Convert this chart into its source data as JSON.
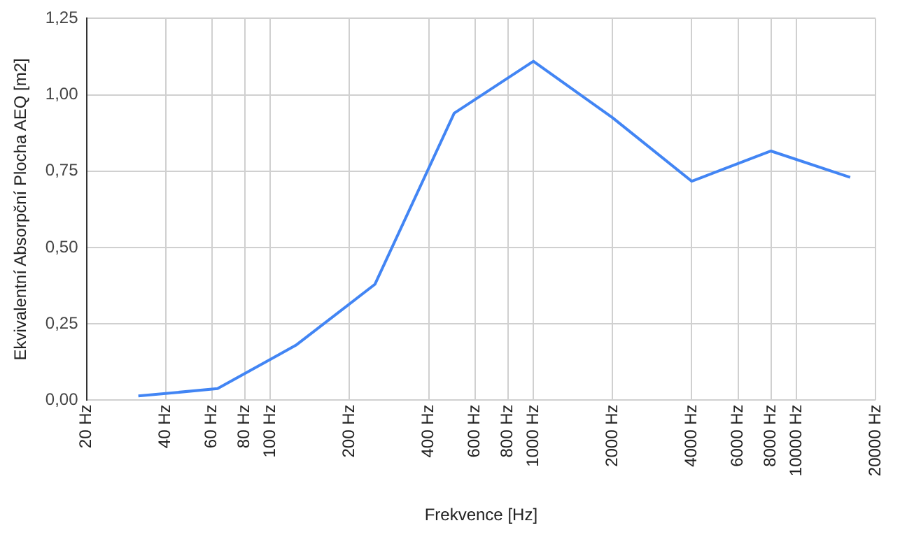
{
  "chart_data": {
    "type": "line",
    "xlabel": "Frekvence [Hz]",
    "ylabel": "Ekvivalentní Absorpční Plocha AEQ [m2]",
    "x": [
      31.5,
      63,
      125,
      250,
      500,
      1000,
      2000,
      4000,
      8000,
      16000
    ],
    "series": [
      {
        "color": "#4285f4",
        "values": [
          0.014,
          0.038,
          0.18,
          0.38,
          0.94,
          1.11,
          0.925,
          0.717,
          0.816,
          0.73
        ]
      }
    ],
    "log": "x",
    "xlim": [
      20,
      20000
    ],
    "xticks": [
      {
        "value": 20,
        "label": "20 Hz"
      },
      {
        "value": 40,
        "label": "40 Hz"
      },
      {
        "value": 60,
        "label": "60 Hz"
      },
      {
        "value": 80,
        "label": "80 Hz"
      },
      {
        "value": 100,
        "label": "100 Hz"
      },
      {
        "value": 200,
        "label": "200 Hz"
      },
      {
        "value": 400,
        "label": "400 Hz"
      },
      {
        "value": 600,
        "label": "600 Hz"
      },
      {
        "value": 800,
        "label": "800 Hz"
      },
      {
        "value": 1000,
        "label": "1000 Hz"
      },
      {
        "value": 2000,
        "label": "2000 Hz"
      },
      {
        "value": 4000,
        "label": "4000 Hz"
      },
      {
        "value": 6000,
        "label": "6000 Hz"
      },
      {
        "value": 8000,
        "label": "8000 Hz"
      },
      {
        "value": 10000,
        "label": "10000 Hz"
      },
      {
        "value": 20000,
        "label": "20000 Hz"
      }
    ],
    "ylim": [
      0,
      1.25
    ],
    "yticks": [
      {
        "value": 0,
        "label": "0,00"
      },
      {
        "value": 0.25,
        "label": "0,25"
      },
      {
        "value": 0.5,
        "label": "0,50"
      },
      {
        "value": 0.75,
        "label": "0,75"
      },
      {
        "value": 1,
        "label": "1,00"
      },
      {
        "value": 1.25,
        "label": "1,25"
      }
    ],
    "grid": true,
    "marker": "none",
    "line_style": "solid"
  }
}
